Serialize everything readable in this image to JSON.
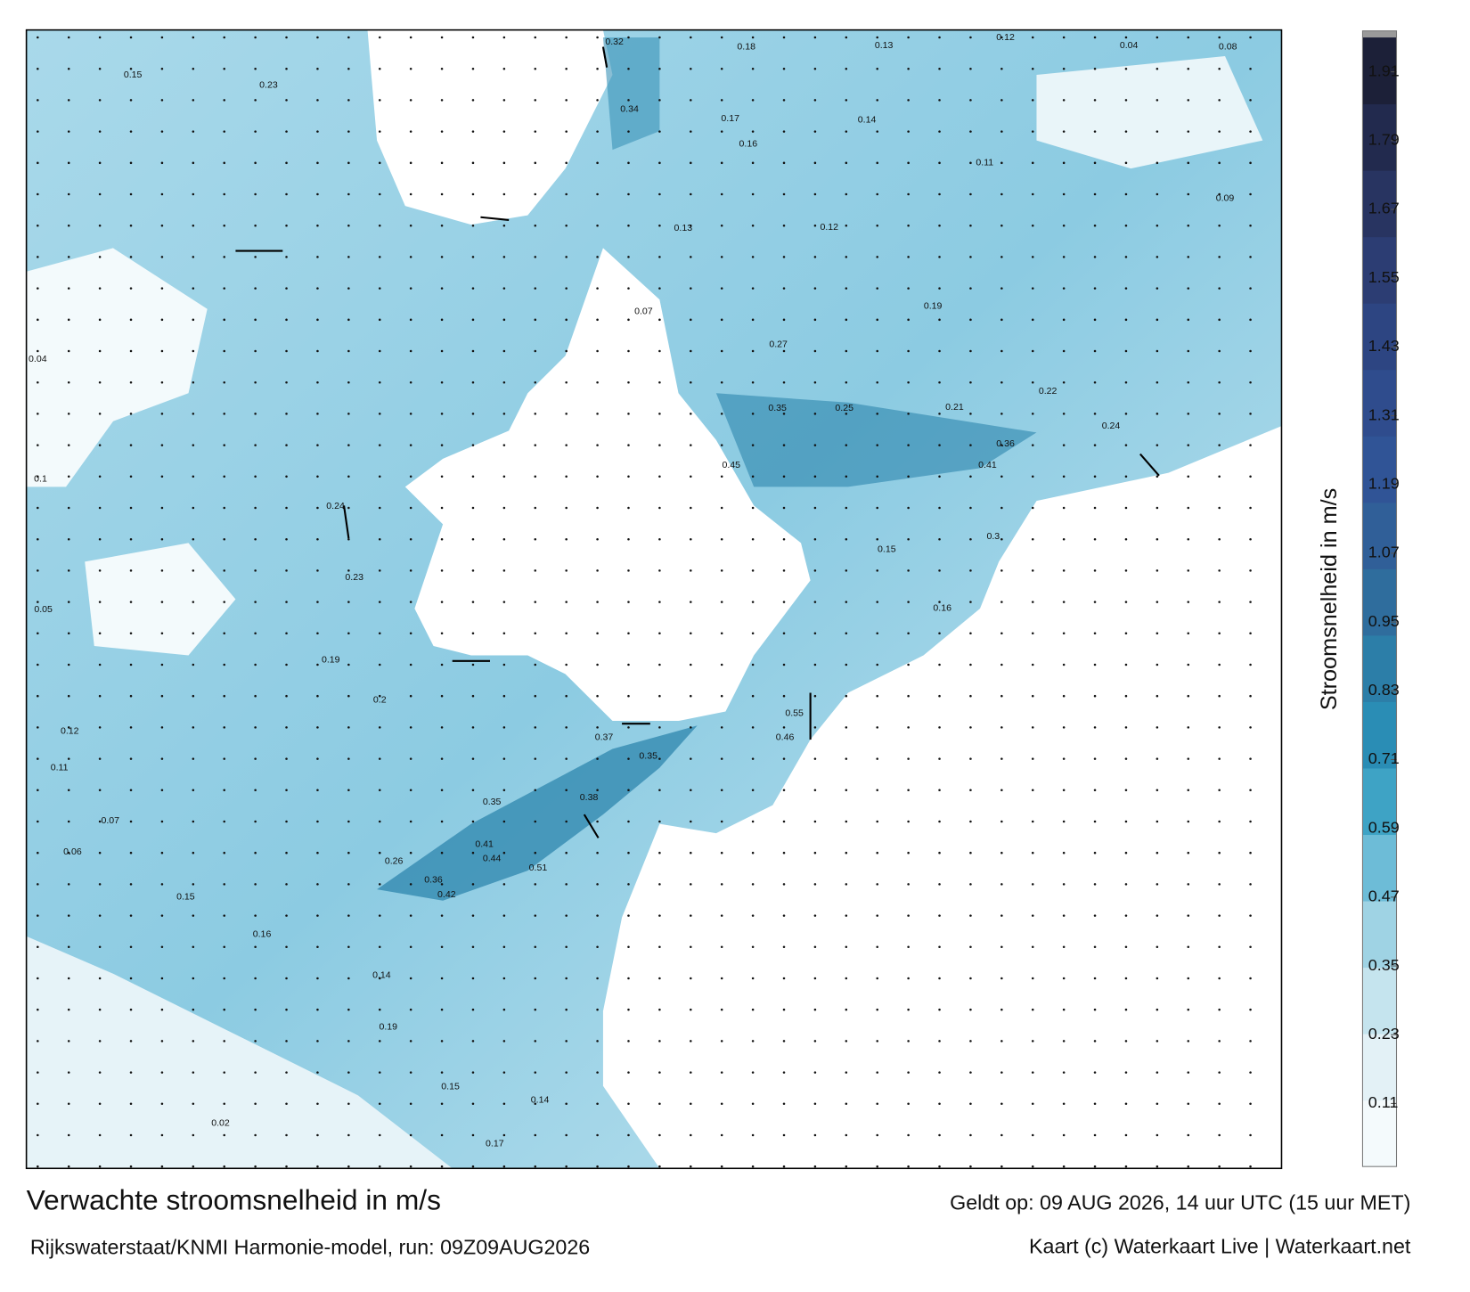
{
  "map": {
    "labels": [
      "0.32",
      "0.18",
      "0.13",
      "0.12",
      "0.04",
      "0.08",
      "0.15",
      "0.23",
      "0.34",
      "0.17",
      "0.16",
      "0.14",
      "0.11",
      "0.09",
      "0.13",
      "0.12",
      "0.19",
      "0.27",
      "0.35",
      "0.25",
      "0.21",
      "0.45",
      "0.36",
      "0.41",
      "0.24",
      "0.23",
      "0.19",
      "0.2",
      "0.55",
      "0.46",
      "0.37",
      "0.35",
      "0.38",
      "0.35",
      "0.41",
      "0.44",
      "0.51",
      "0.42",
      "0.36",
      "0.26",
      "0.15",
      "0.16",
      "0.14",
      "0.19",
      "0.15",
      "0.14",
      "0.17",
      "0.02",
      "0.12",
      "0.11",
      "0.07",
      "0.06",
      "0.1",
      "0.05",
      "0.04",
      "0.07",
      "0.15",
      "0.16",
      "0.3",
      "0.22",
      "0.24"
    ]
  },
  "colorbar": {
    "label": "Stroomsnelheid in m/s",
    "range": [
      0,
      1.97
    ],
    "ticks": [
      0.11,
      0.23,
      0.35,
      0.47,
      0.59,
      0.71,
      0.83,
      0.95,
      1.07,
      1.19,
      1.31,
      1.43,
      1.55,
      1.67,
      1.79,
      1.91
    ],
    "colors": [
      "#f4fafc",
      "#e3f1f6",
      "#c5e4ee",
      "#9fd3e4",
      "#6dbcd7",
      "#3ea3c5",
      "#2a8db5",
      "#2c7ea8",
      "#2f6d9d",
      "#305f98",
      "#305496",
      "#2f4c8d",
      "#2d4582",
      "#2c3d73",
      "#283461",
      "#222a4e",
      "#1c2038"
    ]
  },
  "footer": {
    "title": "Verwachte stroomsnelheid in m/s",
    "source": "Rijkswaterstaat/KNMI Harmonie-model, run: 09Z09AUG2026",
    "valid": "Geldt op: 09 AUG 2026, 14 uur UTC (15 uur MET)",
    "credit": "Kaart (c) Waterkaart Live | Waterkaart.net"
  }
}
